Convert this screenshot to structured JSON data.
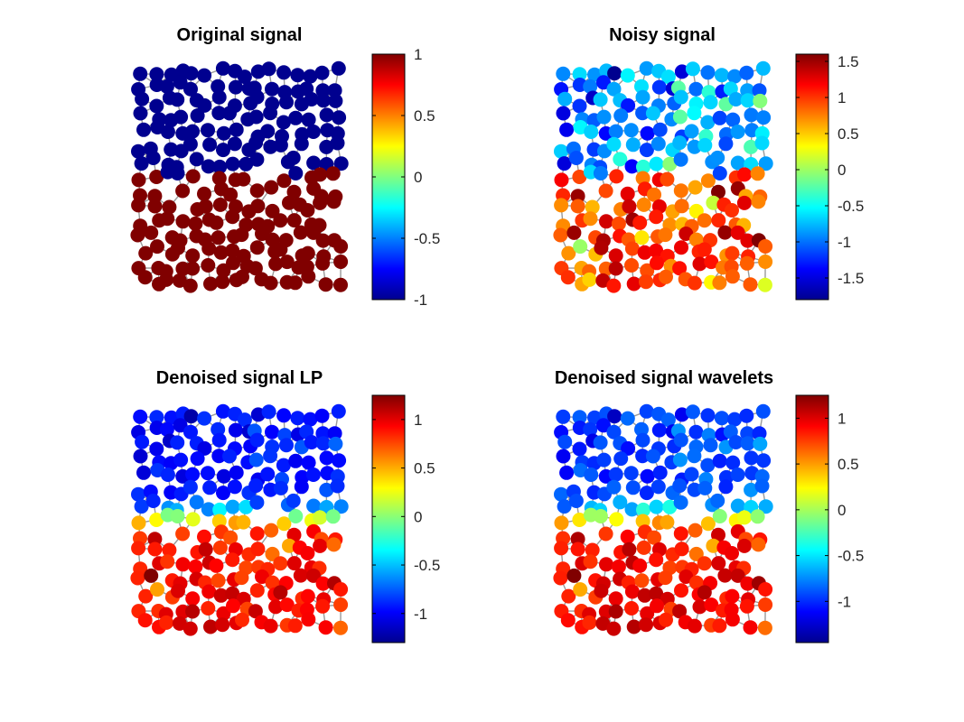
{
  "figure": {
    "colormap": [
      "#00008f",
      "#0000ff",
      "#0080ff",
      "#00ffff",
      "#80ff80",
      "#ffff00",
      "#ff8000",
      "#ff0000",
      "#800000"
    ],
    "edge_color": "#9a9a9a",
    "node_outline": "none"
  },
  "chart_data": [
    {
      "type": "scatter",
      "title": "Original signal",
      "colorbar": {
        "range": [
          -1,
          1
        ],
        "ticks": [
          1,
          0.5,
          0,
          -0.5,
          -1
        ]
      },
      "signal": {
        "top_value": -1,
        "bottom_value": 1,
        "boundary": 0.485,
        "noise": 0,
        "transition": "sharp"
      }
    },
    {
      "type": "scatter",
      "title": "Noisy signal",
      "colorbar": {
        "range": [
          -1.8,
          1.6
        ],
        "ticks": [
          1.5,
          1,
          0.5,
          0,
          -0.5,
          -1,
          -1.5
        ]
      },
      "signal": {
        "top_value": -0.9,
        "bottom_value": 1.0,
        "boundary": 0.485,
        "noise": 0.3,
        "transition": "sharp"
      }
    },
    {
      "type": "scatter",
      "title": "Denoised signal LP",
      "colorbar": {
        "range": [
          -1.3,
          1.25
        ],
        "ticks": [
          1,
          0.5,
          0,
          -0.5,
          -1
        ]
      },
      "signal": {
        "top_value": -0.95,
        "bottom_value": 1.0,
        "boundary": 0.485,
        "noise": 0.08,
        "transition": "smooth"
      }
    },
    {
      "type": "scatter",
      "title": "Denoised signal wavelets",
      "colorbar": {
        "range": [
          -1.45,
          1.25
        ],
        "ticks": [
          1,
          0.5,
          0,
          -0.5,
          -1
        ]
      },
      "signal": {
        "top_value": -0.95,
        "bottom_value": 1.0,
        "boundary": 0.485,
        "noise": 0.1,
        "transition": "smooth"
      }
    }
  ]
}
